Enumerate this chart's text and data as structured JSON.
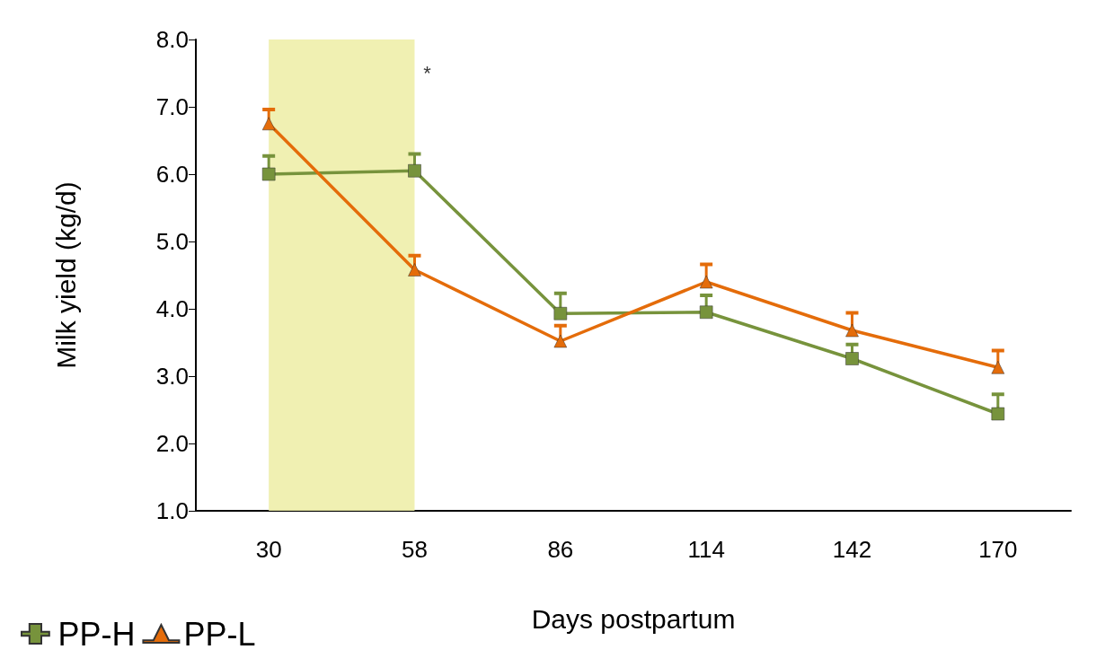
{
  "chart_data": {
    "type": "line",
    "xlabel": "Days postpartum",
    "ylabel": "Milk yield (kg/d)",
    "categories": [
      "30",
      "58",
      "86",
      "114",
      "142",
      "170"
    ],
    "series": [
      {
        "name": "PP-H",
        "color": "#77933c",
        "marker": "square",
        "values": [
          6.0,
          6.05,
          3.93,
          3.95,
          3.26,
          2.44
        ],
        "errors": [
          [
            6.0,
            6.27
          ],
          [
            6.05,
            6.3
          ],
          [
            3.93,
            4.23
          ],
          [
            3.95,
            4.2
          ],
          [
            3.26,
            3.47
          ],
          [
            2.44,
            2.73
          ]
        ]
      },
      {
        "name": "PP-L",
        "color": "#e46c0a",
        "marker": "triangle",
        "values": [
          6.75,
          4.58,
          3.52,
          4.4,
          3.68,
          3.13
        ],
        "errors": [
          [
            6.75,
            6.96
          ],
          [
            4.58,
            4.79
          ],
          [
            3.52,
            3.75
          ],
          [
            4.4,
            4.66
          ],
          [
            3.68,
            3.94
          ],
          [
            3.13,
            3.38
          ]
        ]
      }
    ],
    "ylim": [
      1,
      8
    ],
    "yticks": [
      {
        "value": 1,
        "label": "1.0"
      },
      {
        "value": 2,
        "label": "2.0"
      },
      {
        "value": 3,
        "label": "3.0"
      },
      {
        "value": 4,
        "label": "4.0"
      },
      {
        "value": 5,
        "label": "5.0"
      },
      {
        "value": 6,
        "label": "6.0"
      },
      {
        "value": 7,
        "label": "7.0"
      },
      {
        "value": 8,
        "label": "8.0"
      }
    ],
    "bands": [
      {
        "axis": "x",
        "from": "30",
        "to": "58",
        "color": "#eeeeaa"
      }
    ],
    "annotations": [
      {
        "text": "*",
        "x": "58",
        "y": 7.5
      }
    ],
    "grid": false,
    "legend": "bottom left",
    "line_style": "solid"
  }
}
